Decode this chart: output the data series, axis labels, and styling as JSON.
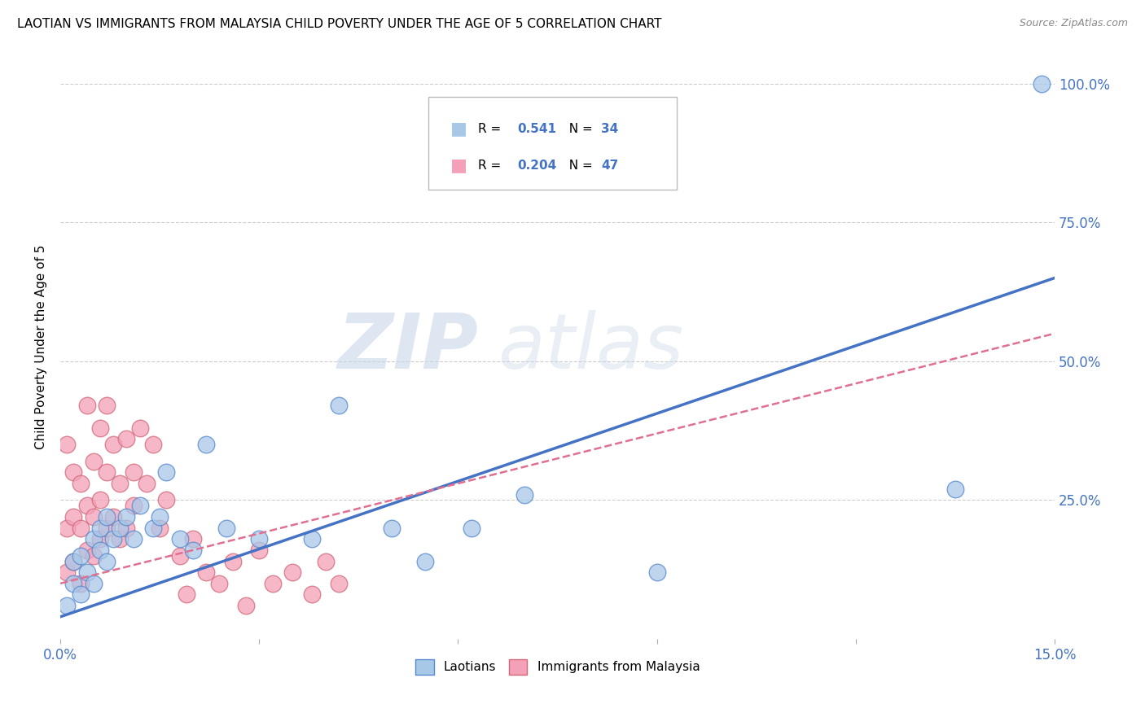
{
  "title": "LAOTIAN VS IMMIGRANTS FROM MALAYSIA CHILD POVERTY UNDER THE AGE OF 5 CORRELATION CHART",
  "source": "Source: ZipAtlas.com",
  "ylabel": "Child Poverty Under the Age of 5",
  "xlim": [
    0.0,
    0.15
  ],
  "ylim": [
    0.0,
    1.05
  ],
  "laotian_R": 0.541,
  "laotian_N": 34,
  "malaysia_R": 0.204,
  "malaysia_N": 47,
  "laotian_color": "#a8c8e8",
  "malaysia_color": "#f4a0b8",
  "laotian_line_color": "#4472c4",
  "malaysia_line_color": "#e07090",
  "watermark_zip": "ZIP",
  "watermark_atlas": "atlas",
  "laotian_x": [
    0.001,
    0.002,
    0.002,
    0.003,
    0.003,
    0.004,
    0.005,
    0.005,
    0.006,
    0.006,
    0.007,
    0.007,
    0.008,
    0.009,
    0.01,
    0.011,
    0.012,
    0.014,
    0.015,
    0.016,
    0.018,
    0.02,
    0.022,
    0.025,
    0.03,
    0.038,
    0.042,
    0.05,
    0.055,
    0.062,
    0.07,
    0.09,
    0.135,
    0.148
  ],
  "laotian_y": [
    0.06,
    0.1,
    0.14,
    0.08,
    0.15,
    0.12,
    0.18,
    0.1,
    0.16,
    0.2,
    0.14,
    0.22,
    0.18,
    0.2,
    0.22,
    0.18,
    0.24,
    0.2,
    0.22,
    0.3,
    0.18,
    0.16,
    0.35,
    0.2,
    0.18,
    0.18,
    0.42,
    0.2,
    0.14,
    0.2,
    0.26,
    0.12,
    0.27,
    1.0
  ],
  "malaysia_x": [
    0.001,
    0.001,
    0.001,
    0.002,
    0.002,
    0.002,
    0.003,
    0.003,
    0.003,
    0.004,
    0.004,
    0.004,
    0.005,
    0.005,
    0.005,
    0.006,
    0.006,
    0.006,
    0.007,
    0.007,
    0.007,
    0.008,
    0.008,
    0.009,
    0.009,
    0.01,
    0.01,
    0.011,
    0.011,
    0.012,
    0.013,
    0.014,
    0.015,
    0.016,
    0.018,
    0.019,
    0.02,
    0.022,
    0.024,
    0.026,
    0.028,
    0.03,
    0.032,
    0.035,
    0.038,
    0.04,
    0.042
  ],
  "malaysia_y": [
    0.12,
    0.2,
    0.35,
    0.14,
    0.22,
    0.3,
    0.1,
    0.2,
    0.28,
    0.16,
    0.24,
    0.42,
    0.15,
    0.22,
    0.32,
    0.18,
    0.25,
    0.38,
    0.2,
    0.3,
    0.42,
    0.22,
    0.35,
    0.18,
    0.28,
    0.2,
    0.36,
    0.24,
    0.3,
    0.38,
    0.28,
    0.35,
    0.2,
    0.25,
    0.15,
    0.08,
    0.18,
    0.12,
    0.1,
    0.14,
    0.06,
    0.16,
    0.1,
    0.12,
    0.08,
    0.14,
    0.1
  ],
  "blue_line_x": [
    0.0,
    0.15
  ],
  "blue_line_y": [
    0.04,
    0.65
  ],
  "pink_line_x": [
    0.0,
    0.15
  ],
  "pink_line_y": [
    0.1,
    0.55
  ]
}
